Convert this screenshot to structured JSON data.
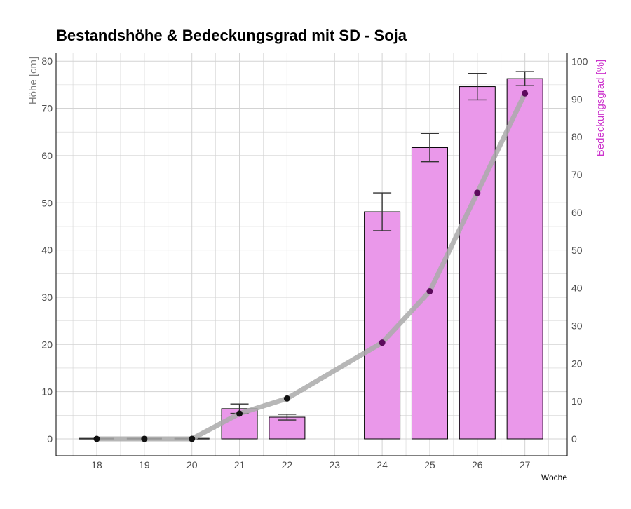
{
  "chart_data": {
    "type": "bar",
    "title": "Bestandshöhe & Bedeckungsgrad mit SD - Soja",
    "xlabel": "Woche",
    "ylabel_left": "Höhe [cm]",
    "ylabel_right": "Bedeckungsgrad [%]",
    "categories": [
      "18",
      "19",
      "20",
      "21",
      "22",
      "23",
      "24",
      "25",
      "26",
      "27"
    ],
    "ylim_left": [
      0,
      80
    ],
    "ylim_right": [
      0,
      100
    ],
    "yticks_left": [
      0,
      10,
      20,
      30,
      40,
      50,
      60,
      70,
      80
    ],
    "yticks_right": [
      0,
      10,
      20,
      30,
      40,
      50,
      60,
      70,
      80,
      90,
      100
    ],
    "grid": true,
    "series": [
      {
        "type": "bar",
        "axis": "left",
        "values": [
          0,
          0,
          0,
          6.4,
          4.6,
          null,
          48.1,
          61.7,
          74.6,
          76.3
        ],
        "sd": [
          0.1,
          0.1,
          0.1,
          1.0,
          0.6,
          null,
          4.0,
          3.0,
          2.8,
          1.5
        ],
        "color": "#ea98ea"
      },
      {
        "type": "line",
        "axis": "right",
        "values": [
          0,
          0,
          0,
          6.7,
          10.7,
          null,
          25.5,
          39.1,
          65.2,
          91.5
        ],
        "color": "#aaaaaa",
        "point_color": "#5c0a5c"
      }
    ],
    "colors": {
      "bar_fill": "#ea98ea",
      "line": "#aaaaaa",
      "points": "#5c0a5c",
      "grid": "#d3d3d3",
      "right_axis_label": "#cc33cc",
      "left_axis_label": "#808080"
    }
  }
}
